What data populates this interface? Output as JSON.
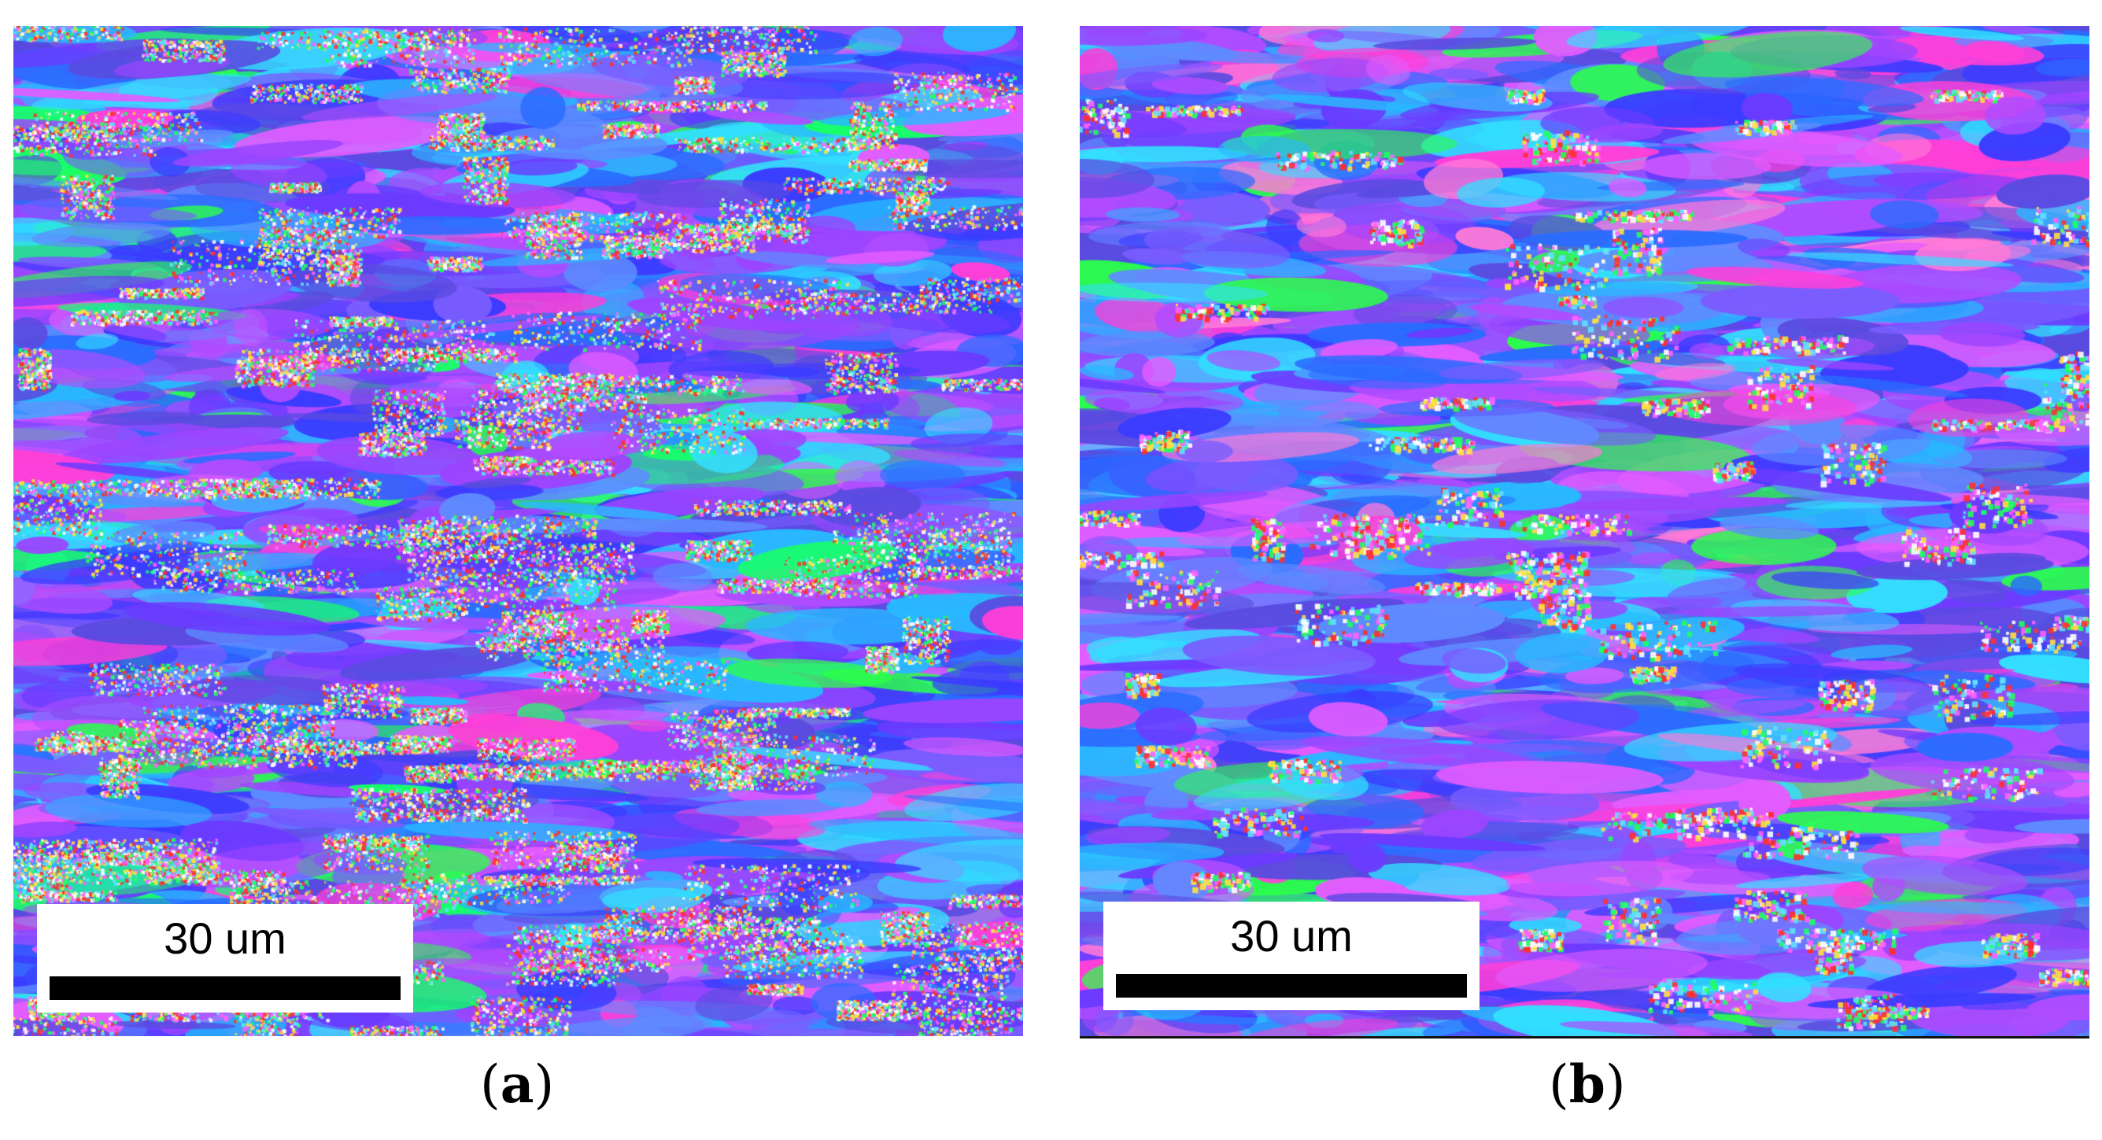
{
  "panels": [
    {
      "id": "a",
      "caption_letter": "a",
      "scalebar_label": "30 um",
      "colors": [
        "#5a4be0",
        "#3b3cff",
        "#6b3bff",
        "#9b45ff",
        "#b04cff",
        "#2a6cff",
        "#29b8ff",
        "#32e0ff",
        "#2bff4a",
        "#18ff6a",
        "#ff3fd8",
        "#e35cff",
        "#5e8cff",
        "#7a5cff"
      ]
    },
    {
      "id": "b",
      "caption_letter": "b",
      "scalebar_label": "30 um",
      "colors": [
        "#5a4be0",
        "#3b3cff",
        "#6b3bff",
        "#9b45ff",
        "#b04cff",
        "#2a6cff",
        "#29b8ff",
        "#32e0ff",
        "#2bff4a",
        "#ff3fd8",
        "#e35cff",
        "#5e8cff",
        "#7a5cff",
        "#ff7ad8"
      ]
    }
  ]
}
